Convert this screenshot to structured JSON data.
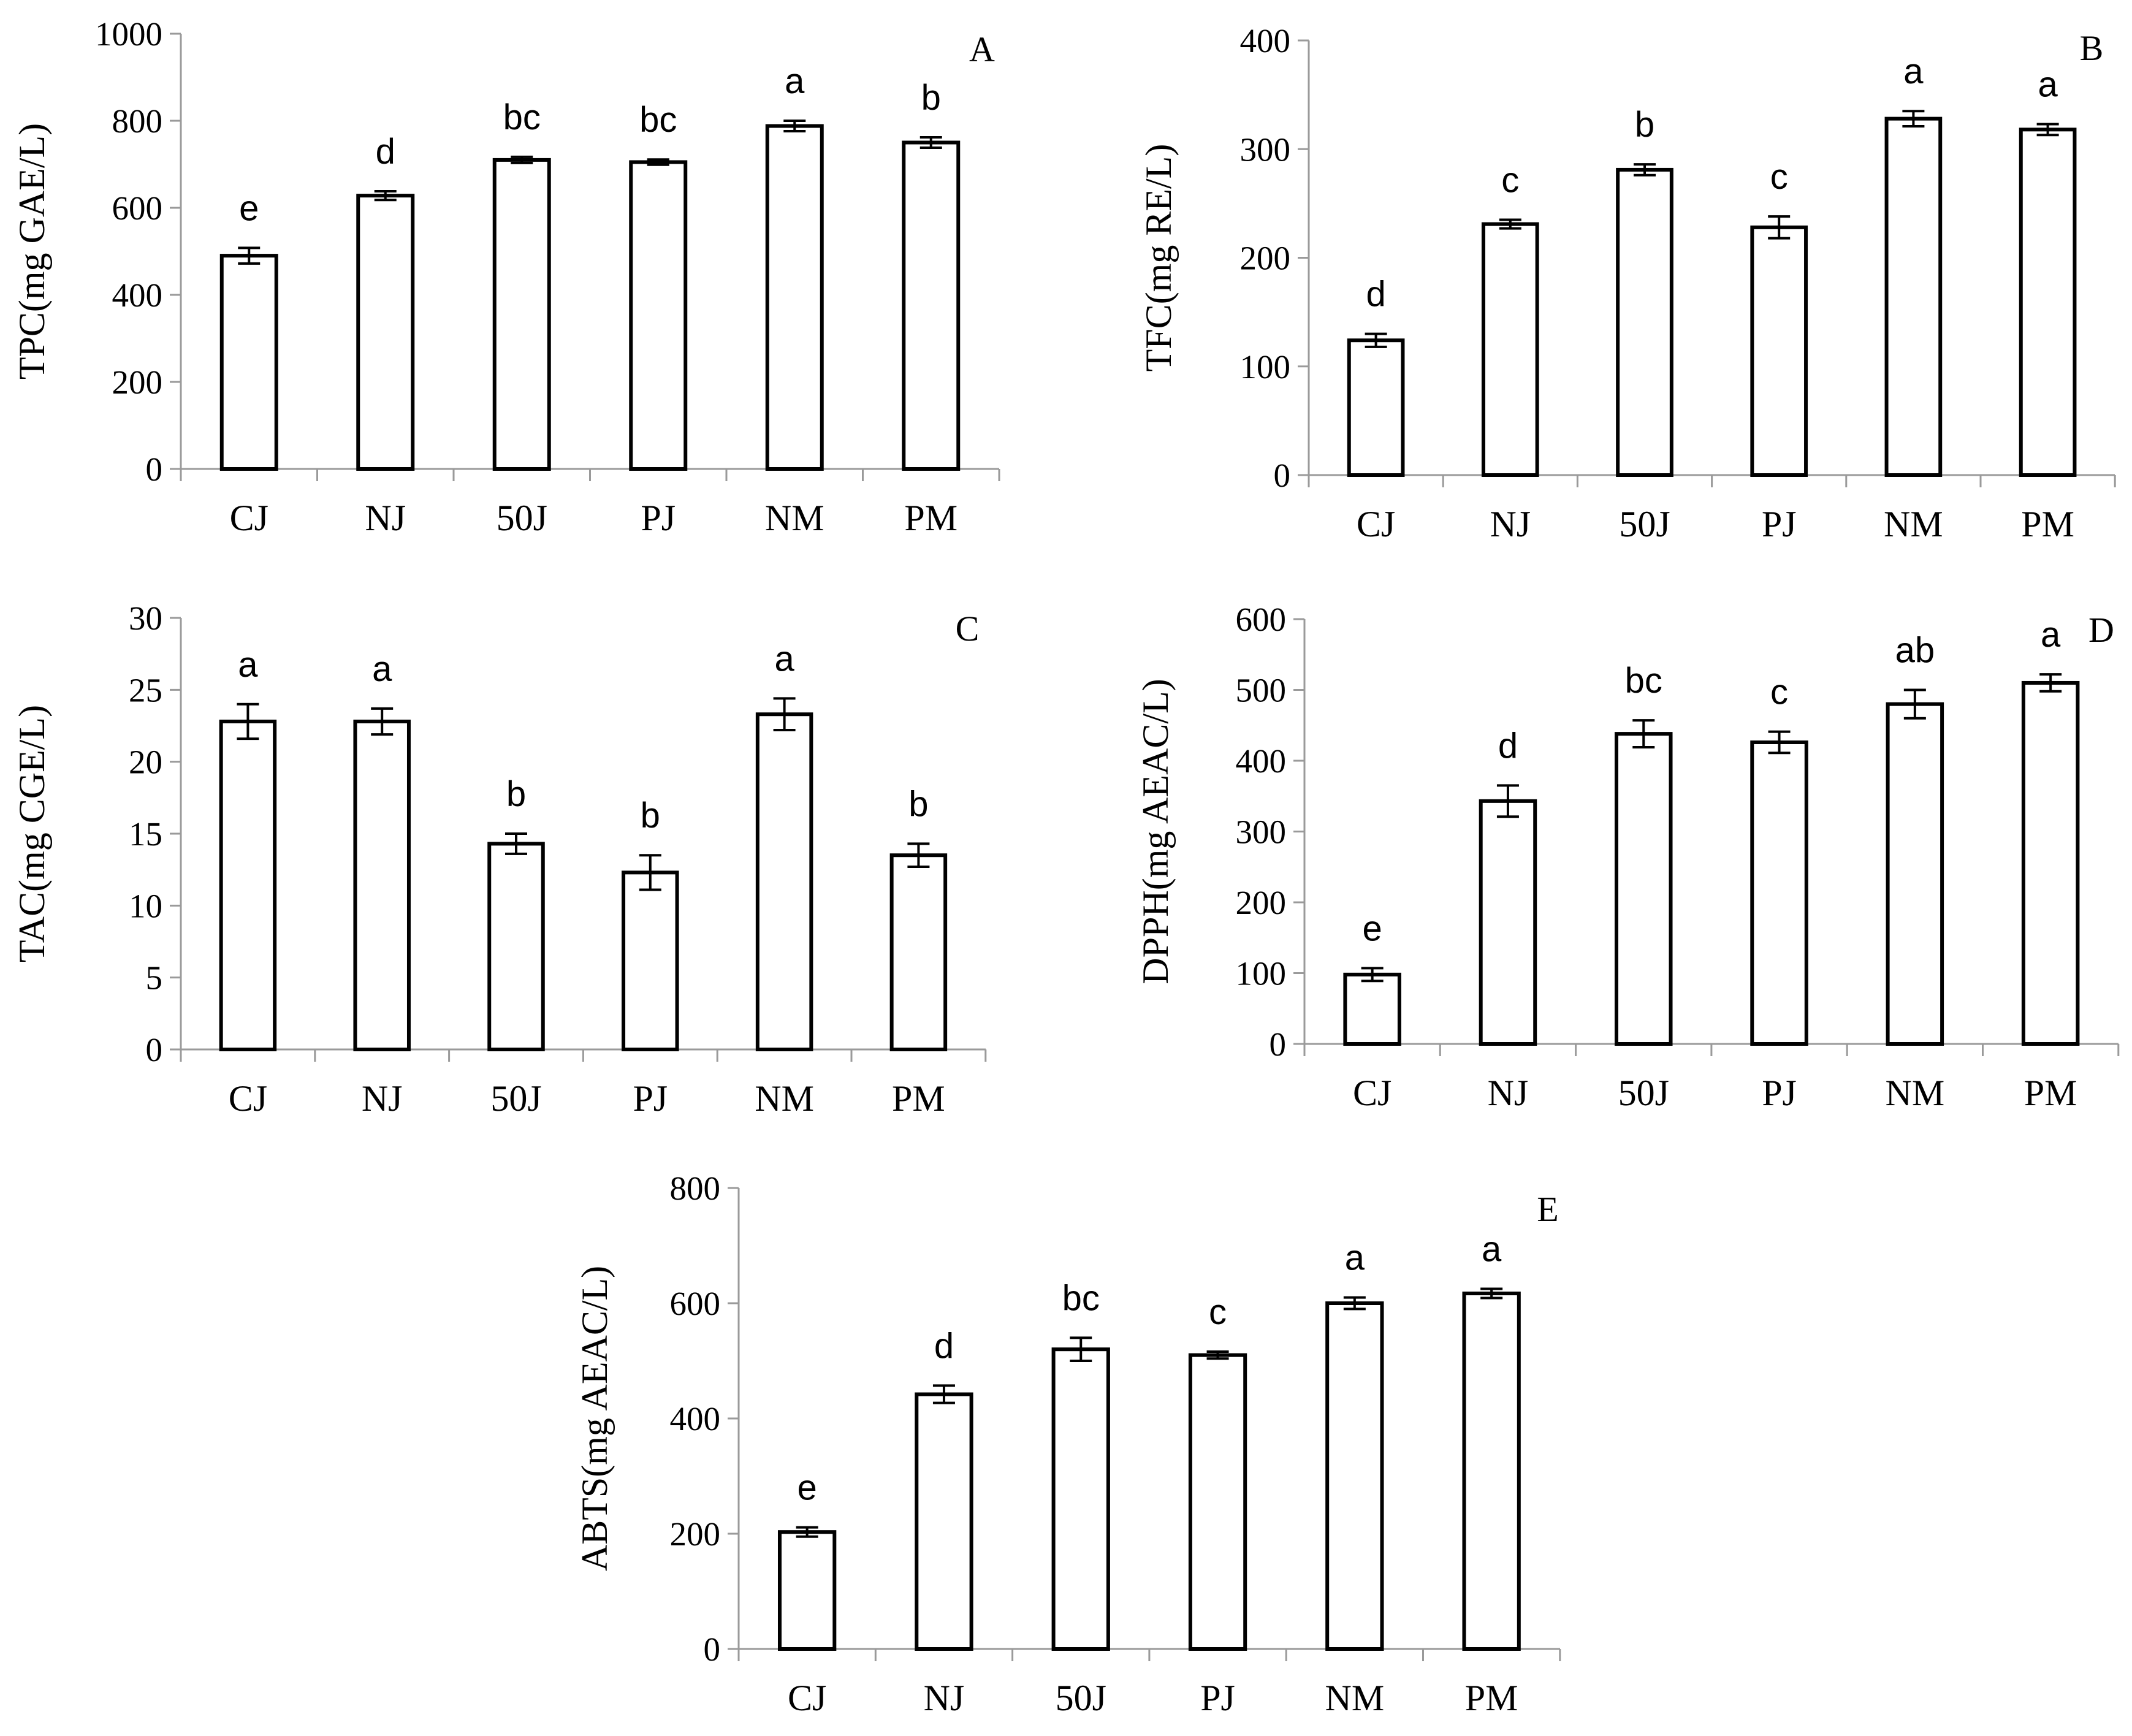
{
  "figure": {
    "charts": [
      "A",
      "B",
      "C",
      "D",
      "E"
    ]
  },
  "chart_data": [
    {
      "panel": "A",
      "type": "bar",
      "ylabel": "TPC(mg GAE/L)",
      "categories": [
        "CJ",
        "NJ",
        "50J",
        "PJ",
        "NM",
        "PM"
      ],
      "values": [
        490,
        628,
        710,
        705,
        788,
        750
      ],
      "errors": [
        18,
        10,
        7,
        6,
        12,
        12
      ],
      "significance": [
        "e",
        "d",
        "bc",
        "bc",
        "a",
        "b"
      ],
      "ylim": [
        0,
        1000
      ],
      "yticks": [
        0,
        200,
        400,
        600,
        800,
        1000
      ]
    },
    {
      "panel": "B",
      "type": "bar",
      "ylabel": "TFC(mg RE/L)",
      "categories": [
        "CJ",
        "NJ",
        "50J",
        "PJ",
        "NM",
        "PM"
      ],
      "values": [
        124,
        231,
        281,
        228,
        328,
        318
      ],
      "errors": [
        6,
        4,
        5,
        10,
        7,
        5
      ],
      "significance": [
        "d",
        "c",
        "b",
        "c",
        "a",
        "a"
      ],
      "ylim": [
        0,
        400
      ],
      "yticks": [
        0,
        100,
        200,
        300,
        400
      ]
    },
    {
      "panel": "C",
      "type": "bar",
      "ylabel": "TAC(mg CGE/L)",
      "categories": [
        "CJ",
        "NJ",
        "50J",
        "PJ",
        "NM",
        "PM"
      ],
      "values": [
        22.8,
        22.8,
        14.3,
        12.3,
        23.3,
        13.5
      ],
      "errors": [
        1.2,
        0.9,
        0.7,
        1.2,
        1.1,
        0.8
      ],
      "significance": [
        "a",
        "a",
        "b",
        "b",
        "a",
        "b"
      ],
      "ylim": [
        0,
        30
      ],
      "yticks": [
        0,
        5,
        10,
        15,
        20,
        25,
        30
      ]
    },
    {
      "panel": "D",
      "type": "bar",
      "ylabel": "DPPH(mg AEAC/L)",
      "categories": [
        "CJ",
        "NJ",
        "50J",
        "PJ",
        "NM",
        "PM"
      ],
      "values": [
        98,
        343,
        438,
        426,
        480,
        510
      ],
      "errors": [
        9,
        22,
        19,
        15,
        20,
        12
      ],
      "significance": [
        "e",
        "d",
        "bc",
        "c",
        "ab",
        "a"
      ],
      "ylim": [
        0,
        600
      ],
      "yticks": [
        0,
        100,
        200,
        300,
        400,
        500,
        600
      ]
    },
    {
      "panel": "E",
      "type": "bar",
      "ylabel": "ABTS(mg AEAC/L)",
      "categories": [
        "CJ",
        "NJ",
        "50J",
        "PJ",
        "NM",
        "PM"
      ],
      "values": [
        203,
        442,
        520,
        510,
        600,
        617
      ],
      "errors": [
        8,
        15,
        20,
        6,
        10,
        8
      ],
      "significance": [
        "e",
        "d",
        "bc",
        "c",
        "a",
        "a"
      ],
      "ylim": [
        0,
        800
      ],
      "yticks": [
        0,
        200,
        400,
        600,
        800
      ]
    }
  ]
}
